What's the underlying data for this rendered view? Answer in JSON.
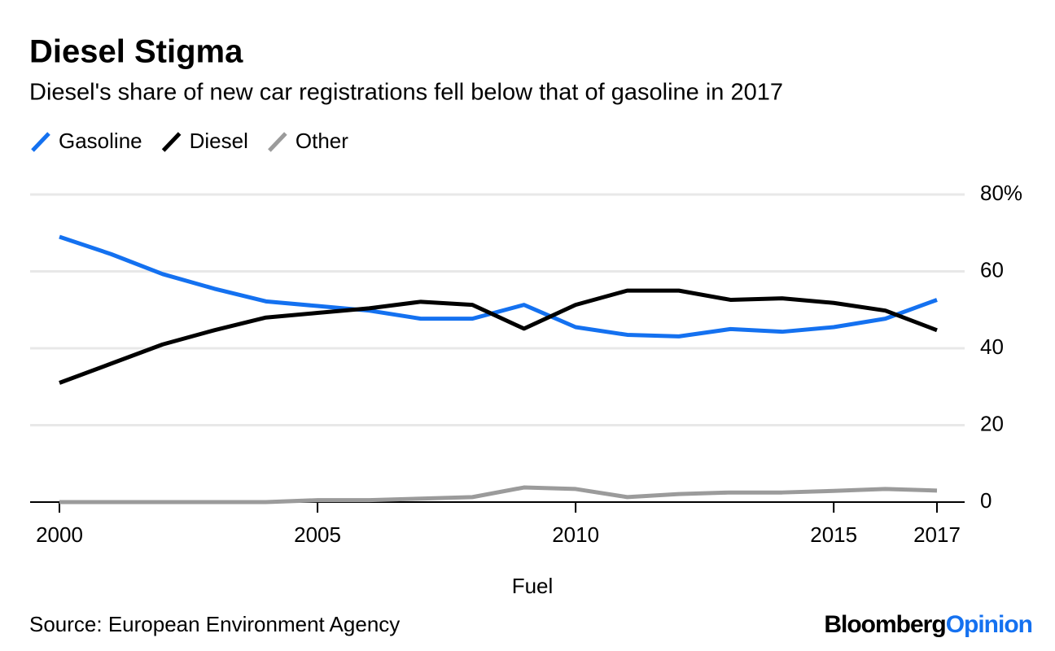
{
  "chart_data": {
    "type": "line",
    "title": "Diesel Stigma",
    "subtitle": "Diesel's share of new car registrations fell below that of gasoline in 2017",
    "x_label": "Fuel",
    "x": [
      2000,
      2001,
      2002,
      2003,
      2004,
      2005,
      2006,
      2007,
      2008,
      2009,
      2010,
      2011,
      2012,
      2013,
      2014,
      2015,
      2016,
      2017
    ],
    "series": [
      {
        "name": "Gasoline",
        "color": "#1471f0",
        "values": [
          69.0,
          64.5,
          59.3,
          55.5,
          52.2,
          51.0,
          49.8,
          47.7,
          47.7,
          51.3,
          45.5,
          43.5,
          43.1,
          45.0,
          44.3,
          45.5,
          47.7,
          52.6
        ]
      },
      {
        "name": "Diesel",
        "color": "#000000",
        "values": [
          31.0,
          36.0,
          41.0,
          44.7,
          48.0,
          49.2,
          50.4,
          52.1,
          51.3,
          45.1,
          51.3,
          55.0,
          55.0,
          52.6,
          53.0,
          51.8,
          49.8,
          44.7
        ]
      },
      {
        "name": "Other",
        "color": "#9b9b9b",
        "values": [
          0,
          0,
          0,
          0,
          0,
          0.5,
          0.5,
          0.9,
          1.3,
          3.8,
          3.4,
          1.3,
          2.1,
          2.5,
          2.5,
          2.9,
          3.4,
          3.0
        ]
      }
    ],
    "xlim": [
      2000,
      2017
    ],
    "xticks": [
      2000,
      2005,
      2010,
      2015,
      2017
    ],
    "ylim": [
      0,
      80
    ],
    "yticks": [
      0,
      20,
      40,
      60,
      {
        "value": 80,
        "label": "80%"
      }
    ],
    "grid": true,
    "source": "Source: European Environment Agency",
    "branding": {
      "first": "Bloomberg",
      "second": "Opinion"
    }
  }
}
